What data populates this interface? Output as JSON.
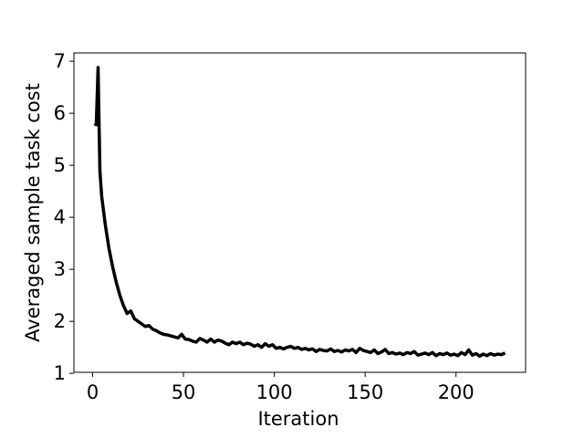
{
  "chart_data": {
    "type": "line",
    "x_label": "Iteration",
    "y_label": "Averaged sample task cost",
    "x": [
      1,
      2,
      3,
      4,
      5,
      7,
      9,
      11,
      13,
      15,
      17,
      19,
      21,
      23,
      25,
      27,
      29,
      31,
      33,
      35,
      37,
      39,
      41,
      43,
      45,
      47,
      49,
      51,
      53,
      55,
      57,
      59,
      61,
      63,
      65,
      67,
      69,
      71,
      73,
      75,
      77,
      79,
      81,
      83,
      85,
      87,
      89,
      91,
      93,
      95,
      97,
      99,
      101,
      103,
      105,
      107,
      109,
      111,
      113,
      115,
      117,
      119,
      121,
      123,
      125,
      127,
      129,
      131,
      133,
      135,
      137,
      139,
      141,
      143,
      145,
      147,
      149,
      151,
      153,
      155,
      157,
      159,
      161,
      163,
      165,
      167,
      169,
      171,
      173,
      175,
      177,
      179,
      181,
      183,
      185,
      187,
      189,
      191,
      193,
      195,
      197,
      199,
      201,
      203,
      205,
      207,
      209,
      211,
      213,
      215,
      217,
      219,
      221,
      223,
      225,
      227
    ],
    "series": [
      {
        "name": "cost",
        "color": "#000000",
        "values": [
          5.8,
          5.78,
          6.88,
          4.9,
          4.4,
          3.85,
          3.4,
          3.05,
          2.75,
          2.5,
          2.3,
          2.15,
          2.2,
          2.05,
          2.0,
          1.95,
          1.9,
          1.92,
          1.85,
          1.82,
          1.78,
          1.75,
          1.74,
          1.72,
          1.7,
          1.68,
          1.75,
          1.66,
          1.65,
          1.62,
          1.6,
          1.67,
          1.64,
          1.6,
          1.66,
          1.6,
          1.64,
          1.62,
          1.58,
          1.55,
          1.6,
          1.57,
          1.6,
          1.55,
          1.58,
          1.56,
          1.52,
          1.55,
          1.5,
          1.57,
          1.52,
          1.55,
          1.48,
          1.5,
          1.47,
          1.5,
          1.52,
          1.48,
          1.5,
          1.46,
          1.48,
          1.45,
          1.47,
          1.42,
          1.46,
          1.44,
          1.43,
          1.47,
          1.42,
          1.44,
          1.41,
          1.45,
          1.43,
          1.46,
          1.4,
          1.48,
          1.44,
          1.42,
          1.4,
          1.45,
          1.38,
          1.41,
          1.46,
          1.38,
          1.4,
          1.37,
          1.39,
          1.36,
          1.4,
          1.38,
          1.42,
          1.35,
          1.37,
          1.39,
          1.36,
          1.4,
          1.34,
          1.38,
          1.36,
          1.39,
          1.35,
          1.37,
          1.34,
          1.4,
          1.36,
          1.45,
          1.35,
          1.38,
          1.33,
          1.37,
          1.34,
          1.38,
          1.35,
          1.37,
          1.36,
          1.39
        ]
      }
    ],
    "xlim": [
      -10.3,
      238.3
    ],
    "ylim": [
      1.02,
      7.16
    ],
    "xticks": [
      0,
      50,
      100,
      150,
      200
    ],
    "yticks": [
      1,
      2,
      3,
      4,
      5,
      6,
      7
    ],
    "grid": false
  }
}
